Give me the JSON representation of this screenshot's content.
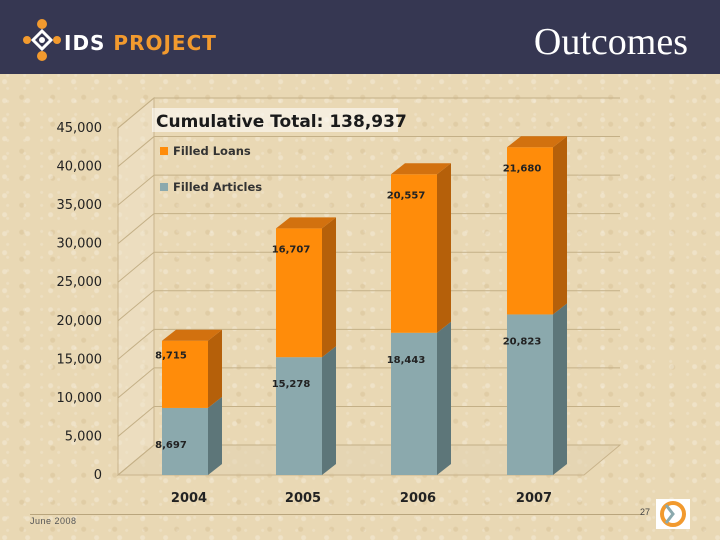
{
  "header": {
    "logo_ids": "IDS",
    "logo_project": "PROJECT",
    "title": "Outcomes"
  },
  "footer": {
    "date": "June 2008",
    "page_number": "27"
  },
  "colors": {
    "header_bg": "#363752",
    "loans": "#ff8c0a",
    "articles": "#8ba9ad",
    "accent": "#f29a2e"
  },
  "chart_data": {
    "type": "bar",
    "stacked": true,
    "three_d": true,
    "title": "Cumulative Total: 138,937",
    "categories": [
      "2004",
      "2005",
      "2006",
      "2007"
    ],
    "series": [
      {
        "name": "Filled Articles",
        "values": [
          8697,
          15278,
          18443,
          20823
        ],
        "labels": [
          "8,697",
          "15,278",
          "18,443",
          "20,823"
        ]
      },
      {
        "name": "Filled Loans",
        "values": [
          8715,
          16707,
          20557,
          21680
        ],
        "labels": [
          "8,715",
          "16,707",
          "20,557",
          "21,680"
        ]
      }
    ],
    "legend": [
      "Filled Loans",
      "Filled Articles"
    ],
    "legend_position": "top-left",
    "y_ticks": [
      "0",
      "5,000",
      "10,000",
      "15,000",
      "20,000",
      "25,000",
      "30,000",
      "35,000",
      "40,000",
      "45,000"
    ],
    "ylim": [
      0,
      45000
    ],
    "grid": true
  }
}
